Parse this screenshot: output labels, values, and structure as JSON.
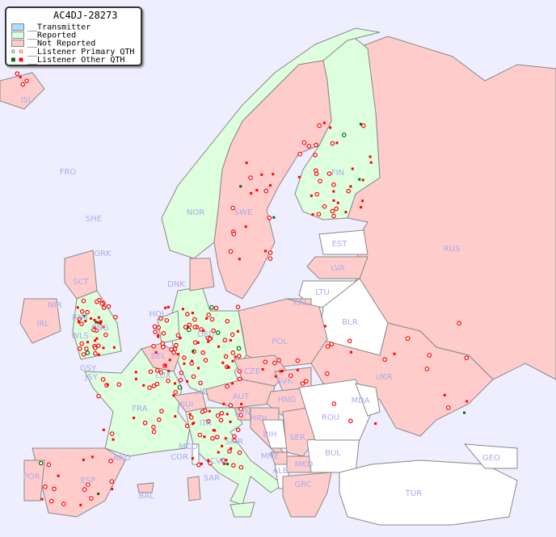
{
  "legend": {
    "title": "AC4DJ-28273",
    "items": [
      {
        "label": "__Transmitter",
        "color": "#aaddff"
      },
      {
        "label": "__Reported",
        "color": "#ddffdd"
      },
      {
        "label": "__Not Reported",
        "color": "#ffcccc"
      },
      {
        "label": "__Listener Primary QTH",
        "colors": [
          "#006600",
          "#ff0000"
        ]
      },
      {
        "label": "__Listener Other QTH",
        "colors": [
          "#006600",
          "#ff0000"
        ]
      }
    ]
  },
  "colors": {
    "ocean": "#eeeeff",
    "reported": "#ddffdd",
    "not_reported": "#ffcccc",
    "no_data": "#ffffff",
    "border": "#888888",
    "label": "#aaaaee"
  },
  "labels": [
    "ISL",
    "FRO",
    "SHE",
    "ORK",
    "NOR",
    "SWE",
    "FIN",
    "EST",
    "RUS",
    "LVA",
    "LTU",
    "DNK",
    "KAL",
    "BLR",
    "SCT",
    "NIR",
    "HOL",
    "IOM",
    "ENG",
    "WLS",
    "IRL",
    "GSY",
    "JSY",
    "BEL",
    "DEU",
    "POL",
    "LUX",
    "CZE",
    "SVK",
    "UKR",
    "FRA",
    "SUI",
    "LIE",
    "AUT",
    "HNG",
    "MDA",
    "SVN",
    "HRV",
    "ROU",
    "ITA",
    "BIH",
    "SER",
    "SMR",
    "MCO",
    "COR",
    "AND",
    "MNE",
    "BUL",
    "GEO",
    "CVA",
    "ALB",
    "MKD",
    "POR",
    "ESP",
    "SAR",
    "GRC",
    "TUR",
    "BAL"
  ]
}
